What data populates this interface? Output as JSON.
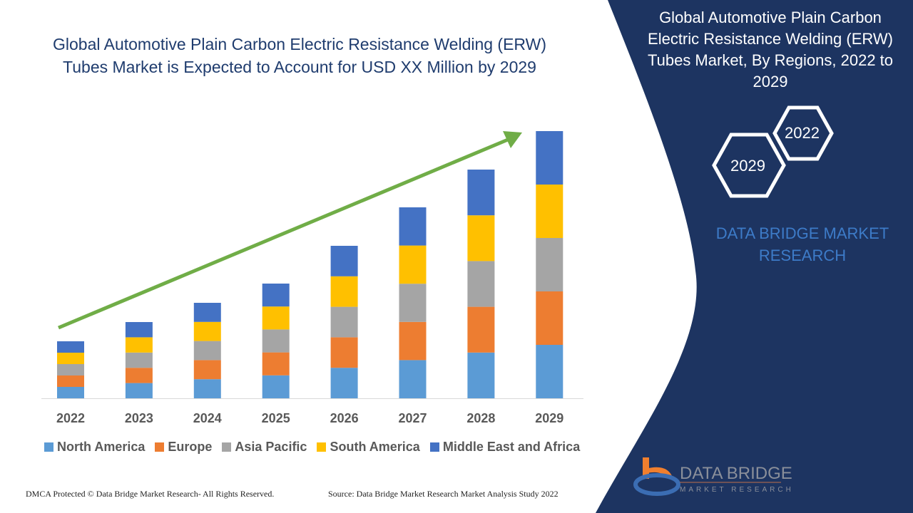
{
  "title": "Global Automotive Plain Carbon Electric Resistance Welding (ERW) Tubes Market is Expected to Account for USD XX Million by 2029",
  "side_panel": {
    "title": "Global Automotive Plain Carbon Electric Resistance Welding (ERW) Tubes Market, By Regions, 2022 to 2029",
    "hex_start": "2022",
    "hex_end": "2029",
    "brand": "DATA BRIDGE MARKET RESEARCH",
    "logo_text": "DATA BRIDGE",
    "logo_sub": "MARKET RESEARCH",
    "colors": {
      "panel": "#1d3461",
      "brand": "#3d7bc8"
    }
  },
  "footer": {
    "left": "DMCA Protected © Data Bridge Market Research- All Rights Reserved.",
    "right": "Source: Data Bridge Market Research Market Analysis Study 2022"
  },
  "chart_data": {
    "type": "bar",
    "stacked": true,
    "categories": [
      "2022",
      "2023",
      "2024",
      "2025",
      "2026",
      "2027",
      "2028",
      "2029"
    ],
    "series": [
      {
        "name": "North America",
        "color": "#5b9bd5",
        "values": [
          16,
          21.4,
          26.8,
          32.2,
          42.8,
          53.6,
          64.2,
          75
        ]
      },
      {
        "name": "Europe",
        "color": "#ed7d31",
        "values": [
          16,
          21.4,
          26.8,
          32.2,
          42.8,
          53.6,
          64.2,
          75
        ]
      },
      {
        "name": "Asia Pacific",
        "color": "#a5a5a5",
        "values": [
          16,
          21.4,
          26.8,
          32.2,
          42.8,
          53.6,
          64.2,
          75
        ]
      },
      {
        "name": "South America",
        "color": "#ffc000",
        "values": [
          16,
          21.4,
          26.8,
          32.2,
          42.8,
          53.6,
          64.2,
          75
        ]
      },
      {
        "name": "Middle East and Africa",
        "color": "#4472c4",
        "values": [
          16,
          21.4,
          26.8,
          32.2,
          42.8,
          53.6,
          64.2,
          75
        ]
      }
    ],
    "trend_arrow_color": "#70ad47",
    "legend_position": "bottom",
    "grid": false,
    "ylim": [
      0,
      375
    ]
  }
}
